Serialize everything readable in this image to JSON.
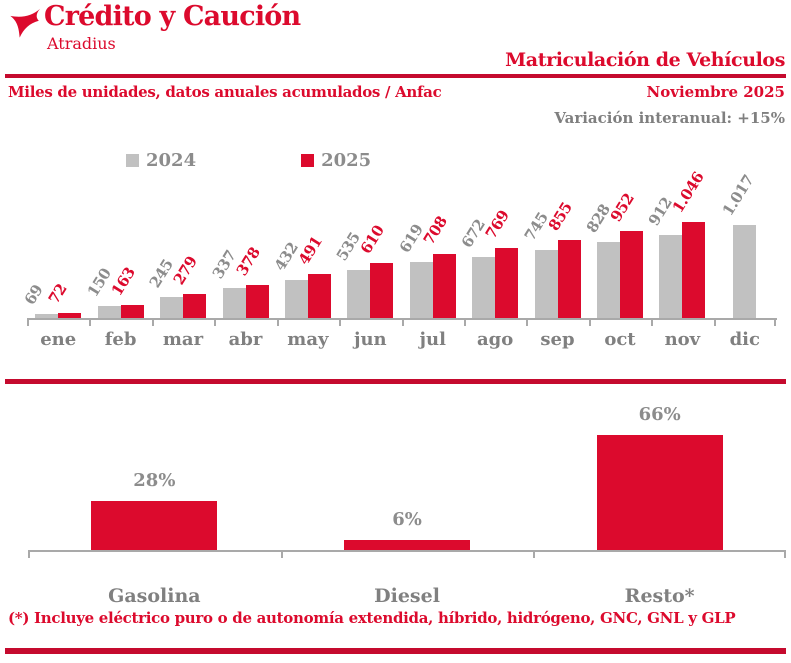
{
  "brand": {
    "name": "Crédito y Caución",
    "subname": "Atradius"
  },
  "header": {
    "title": "Matriculación de Vehículos",
    "subtitle": "Miles de unidades, datos anuales acumulados / Anfac",
    "period": "Noviembre 2025",
    "variation": "Variación interanual: +15%"
  },
  "colors": {
    "brand_red": "#DC0A2D",
    "rule_red": "#C50A2E",
    "bar_2024_gray": "#C1C1C1",
    "bar_2025_red": "#DC0A2D",
    "text_gray": "#808080",
    "axis_gray": "#A9A9A9"
  },
  "chart_data": [
    {
      "type": "bar",
      "title": "Matriculación de Vehículos",
      "subtitle": "Miles de unidades, datos anuales acumulados / Anfac",
      "categories": [
        "ene",
        "feb",
        "mar",
        "abr",
        "may",
        "jun",
        "jul",
        "ago",
        "sep",
        "oct",
        "nov",
        "dic"
      ],
      "series": [
        {
          "name": "2024",
          "color": "#C1C1C1",
          "values": [
            69,
            150,
            245,
            337,
            432,
            535,
            619,
            672,
            745,
            828,
            912,
            1017
          ],
          "labels": [
            "69",
            "150",
            "245",
            "337",
            "432",
            "535",
            "619",
            "672",
            "745",
            "828",
            "912",
            "1.017"
          ]
        },
        {
          "name": "2025",
          "color": "#DC0A2D",
          "values": [
            72,
            163,
            279,
            378,
            491,
            610,
            708,
            769,
            855,
            952,
            1046,
            null
          ],
          "labels": [
            "72",
            "163",
            "279",
            "378",
            "491",
            "610",
            "708",
            "769",
            "855",
            "952",
            "1.046",
            null
          ]
        }
      ],
      "ylim": [
        0,
        1100
      ],
      "grid": false,
      "legend_position": "top",
      "value_labels_rotated": true
    },
    {
      "type": "bar",
      "categories": [
        "Gasolina",
        "Diesel",
        "Resto*"
      ],
      "values": [
        28,
        6,
        66
      ],
      "labels": [
        "28%",
        "6%",
        "66%"
      ],
      "ylim": [
        0,
        70
      ],
      "grid": false,
      "bar_color": "#DC0A2D"
    }
  ],
  "footnote": "(*) Incluye eléctrico puro o de autonomía extendida, híbrido, hidrógeno, GNC, GNL y GLP"
}
